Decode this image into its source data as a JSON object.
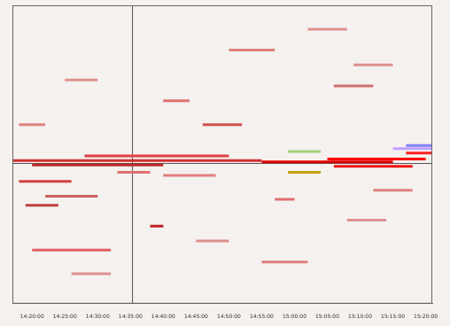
{
  "chart_data": {
    "type": "scatter",
    "xlim": [
      857,
      921
    ],
    "xticks": [
      {
        "value": 860,
        "label": "14:20:00"
      },
      {
        "value": 865,
        "label": "14:25:00"
      },
      {
        "value": 870,
        "label": "14:30:00"
      },
      {
        "value": 875,
        "label": "14:35:00"
      },
      {
        "value": 880,
        "label": "14:40:00"
      },
      {
        "value": 885,
        "label": "14:45:00"
      },
      {
        "value": 890,
        "label": "14:50:00"
      },
      {
        "value": 895,
        "label": "14:55:00"
      },
      {
        "value": 900,
        "label": "15:00:00"
      },
      {
        "value": 905,
        "label": "15:05:00"
      },
      {
        "value": 910,
        "label": "15:10:00"
      },
      {
        "value": 915,
        "label": "15:15:00"
      },
      {
        "value": 920,
        "label": "15:20:00"
      }
    ],
    "ylim": [
      0,
      100
    ],
    "tick_labels": "x",
    "grid": false,
    "cursor": {
      "x": 875.3,
      "y": 47
    },
    "streaks": {
      "x0": [
        857,
        860,
        868,
        895,
        905,
        906,
        917,
        917,
        915,
        858,
        859,
        862,
        878,
        860,
        873,
        880,
        886,
        880,
        858,
        865,
        890,
        902,
        906,
        909,
        897,
        912,
        885,
        866,
        895,
        908,
        899,
        899
      ],
      "x1": [
        895,
        880,
        890,
        915,
        920,
        918,
        921,
        921,
        921,
        866,
        864,
        870,
        880,
        872,
        878,
        888,
        892,
        884,
        862,
        870,
        897,
        908,
        912,
        915,
        900,
        918,
        890,
        872,
        902,
        914,
        904,
        904
      ],
      "y": [
        48,
        46.5,
        49.5,
        47.5,
        48.5,
        46,
        50.5,
        53,
        52,
        41,
        33,
        36,
        26,
        18,
        44,
        43,
        60,
        68,
        60,
        75,
        85,
        92,
        73,
        80,
        35,
        38,
        21,
        10,
        14,
        28,
        44,
        51
      ],
      "colors": [
        "#d03030",
        "#c02828",
        "#e04040",
        "#e00000",
        "#ff0000",
        "#f01010",
        "#ff2020",
        "#8080ff",
        "#c0a0ff",
        "#d04040",
        "#c04040",
        "#d06060",
        "#c02020",
        "#e06060",
        "#e07070",
        "#e08080",
        "#d05050",
        "#e07070",
        "#e08080",
        "#e09090",
        "#e08080",
        "#e09090",
        "#d07070",
        "#e09090",
        "#e07070",
        "#e08080",
        "#e09090",
        "#e09090",
        "#e08080",
        "#e09090",
        "#c8a000",
        "#a0d080"
      ]
    }
  }
}
